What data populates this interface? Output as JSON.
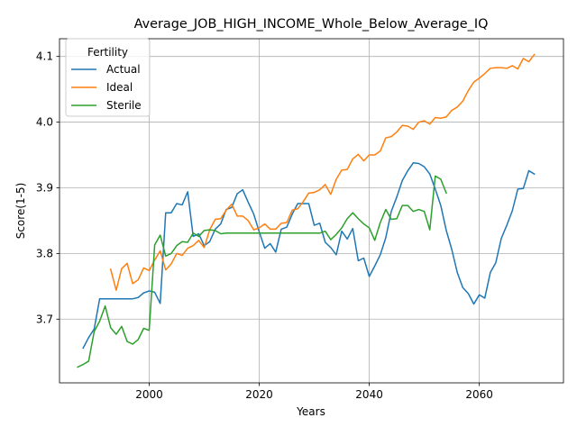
{
  "chart_data": {
    "type": "line",
    "title": "Average_JOB_HIGH_INCOME_Whole_Below_Average_IQ",
    "xlabel": "Years",
    "ylabel": "Score(1-5)",
    "xlim": [
      1983.7,
      2075.3
    ],
    "ylim": [
      3.603,
      4.127
    ],
    "xticks": [
      2000,
      2020,
      2040,
      2060
    ],
    "yticks": [
      3.7,
      3.8,
      3.9,
      4.0,
      4.1
    ],
    "xtick_labels": [
      "2000",
      "2020",
      "2040",
      "2060"
    ],
    "ytick_labels": [
      "3.7",
      "3.8",
      "3.9",
      "4.0",
      "4.1"
    ],
    "grid": true,
    "legend": {
      "title": "Fertility",
      "placement": "upper-left"
    },
    "series": [
      {
        "name": "Actual",
        "color": "#1f77b4",
        "x": [
          1988,
          1989,
          1990,
          1991,
          1992,
          1993,
          1994,
          1995,
          1996,
          1997,
          1998,
          1999,
          2000,
          2001,
          2002,
          2003,
          2004,
          2005,
          2006,
          2007,
          2008,
          2009,
          2010,
          2011,
          2012,
          2013,
          2014,
          2015,
          2016,
          2017,
          2018,
          2019,
          2020,
          2021,
          2022,
          2023,
          2024,
          2025,
          2026,
          2027,
          2028,
          2029,
          2030,
          2031,
          2032,
          2033,
          2034,
          2035,
          2036,
          2037,
          2038,
          2039,
          2040,
          2041,
          2042,
          2043,
          2044,
          2045,
          2046,
          2047,
          2048,
          2049,
          2050,
          2051,
          2052,
          2053,
          2054,
          2055,
          2056,
          2057,
          2058,
          2059,
          2060,
          2061,
          2062,
          2063,
          2064,
          2065,
          2066,
          2067,
          2068,
          2069,
          2070
        ],
        "y": [
          3.656,
          3.672,
          3.685,
          3.731,
          3.731,
          3.731,
          3.731,
          3.731,
          3.731,
          3.731,
          3.733,
          3.74,
          3.743,
          3.741,
          3.724,
          3.862,
          3.862,
          3.876,
          3.874,
          3.894,
          3.826,
          3.83,
          3.812,
          3.818,
          3.837,
          3.845,
          3.867,
          3.87,
          3.891,
          3.897,
          3.878,
          3.86,
          3.833,
          3.808,
          3.815,
          3.802,
          3.837,
          3.84,
          3.86,
          3.876,
          3.876,
          3.876,
          3.843,
          3.846,
          3.817,
          3.809,
          3.798,
          3.834,
          3.822,
          3.838,
          3.789,
          3.793,
          3.765,
          3.781,
          3.798,
          3.824,
          3.864,
          3.886,
          3.911,
          3.926,
          3.938,
          3.937,
          3.932,
          3.921,
          3.898,
          3.873,
          3.835,
          3.806,
          3.771,
          3.748,
          3.739,
          3.723,
          3.737,
          3.732,
          3.771,
          3.786,
          3.823,
          3.843,
          3.865,
          3.898,
          3.899,
          3.926,
          3.921
        ]
      },
      {
        "name": "Ideal",
        "color": "#ff7f0e",
        "x": [
          1993,
          1994,
          1995,
          1996,
          1997,
          1998,
          1999,
          2000,
          2001,
          2002,
          2003,
          2004,
          2005,
          2006,
          2007,
          2008,
          2009,
          2010,
          2011,
          2012,
          2013,
          2014,
          2015,
          2016,
          2017,
          2018,
          2019,
          2020,
          2021,
          2022,
          2023,
          2024,
          2025,
          2026,
          2027,
          2028,
          2029,
          2030,
          2031,
          2032,
          2033,
          2034,
          2035,
          2036,
          2037,
          2038,
          2039,
          2040,
          2041,
          2042,
          2043,
          2044,
          2045,
          2046,
          2047,
          2048,
          2049,
          2050,
          2051,
          2052,
          2053,
          2054,
          2055,
          2056,
          2057,
          2058,
          2059,
          2060,
          2061,
          2062,
          2063,
          2064,
          2065,
          2066,
          2067,
          2068,
          2069,
          2070
        ],
        "y": [
          3.776,
          3.744,
          3.777,
          3.785,
          3.754,
          3.76,
          3.778,
          3.774,
          3.79,
          3.804,
          3.775,
          3.784,
          3.8,
          3.797,
          3.808,
          3.812,
          3.82,
          3.809,
          3.836,
          3.852,
          3.853,
          3.866,
          3.875,
          3.857,
          3.857,
          3.85,
          3.836,
          3.839,
          3.845,
          3.837,
          3.837,
          3.846,
          3.847,
          3.866,
          3.868,
          3.879,
          3.892,
          3.893,
          3.897,
          3.905,
          3.89,
          3.913,
          3.927,
          3.928,
          3.944,
          3.951,
          3.941,
          3.95,
          3.95,
          3.956,
          3.976,
          3.978,
          3.985,
          3.995,
          3.994,
          3.989,
          4.0,
          4.002,
          3.997,
          4.007,
          4.006,
          4.008,
          4.018,
          4.023,
          4.032,
          4.048,
          4.061,
          4.067,
          4.074,
          4.082,
          4.083,
          4.083,
          4.082,
          4.086,
          4.081,
          4.097,
          4.092,
          4.103
        ]
      },
      {
        "name": "Sterile",
        "color": "#2ca02c",
        "x": [
          1987,
          1988,
          1989,
          1990,
          1991,
          1992,
          1993,
          1994,
          1995,
          1996,
          1997,
          1998,
          1999,
          2000,
          2001,
          2002,
          2003,
          2004,
          2005,
          2006,
          2007,
          2008,
          2009,
          2010,
          2011,
          2012,
          2013,
          2014,
          2015,
          2016,
          2017,
          2018,
          2019,
          2020,
          2021,
          2022,
          2023,
          2024,
          2025,
          2026,
          2027,
          2028,
          2029,
          2030,
          2031,
          2032,
          2033,
          2034,
          2035,
          2036,
          2037,
          2038,
          2039,
          2040,
          2041,
          2042,
          2043,
          2044,
          2045,
          2046,
          2047,
          2048,
          2049,
          2050,
          2051,
          2052,
          2053,
          2054
        ],
        "y": [
          3.627,
          3.631,
          3.636,
          3.681,
          3.697,
          3.72,
          3.687,
          3.677,
          3.689,
          3.666,
          3.662,
          3.669,
          3.686,
          3.683,
          3.813,
          3.828,
          3.796,
          3.8,
          3.812,
          3.818,
          3.817,
          3.831,
          3.826,
          3.835,
          3.836,
          3.835,
          3.83,
          3.831,
          3.831,
          3.831,
          3.831,
          3.831,
          3.831,
          3.831,
          3.831,
          3.831,
          3.831,
          3.831,
          3.831,
          3.831,
          3.831,
          3.831,
          3.831,
          3.831,
          3.831,
          3.834,
          3.821,
          3.829,
          3.839,
          3.853,
          3.862,
          3.853,
          3.845,
          3.839,
          3.82,
          3.847,
          3.867,
          3.852,
          3.853,
          3.873,
          3.873,
          3.864,
          3.867,
          3.864,
          3.836,
          3.918,
          3.913,
          3.892
        ]
      }
    ]
  }
}
